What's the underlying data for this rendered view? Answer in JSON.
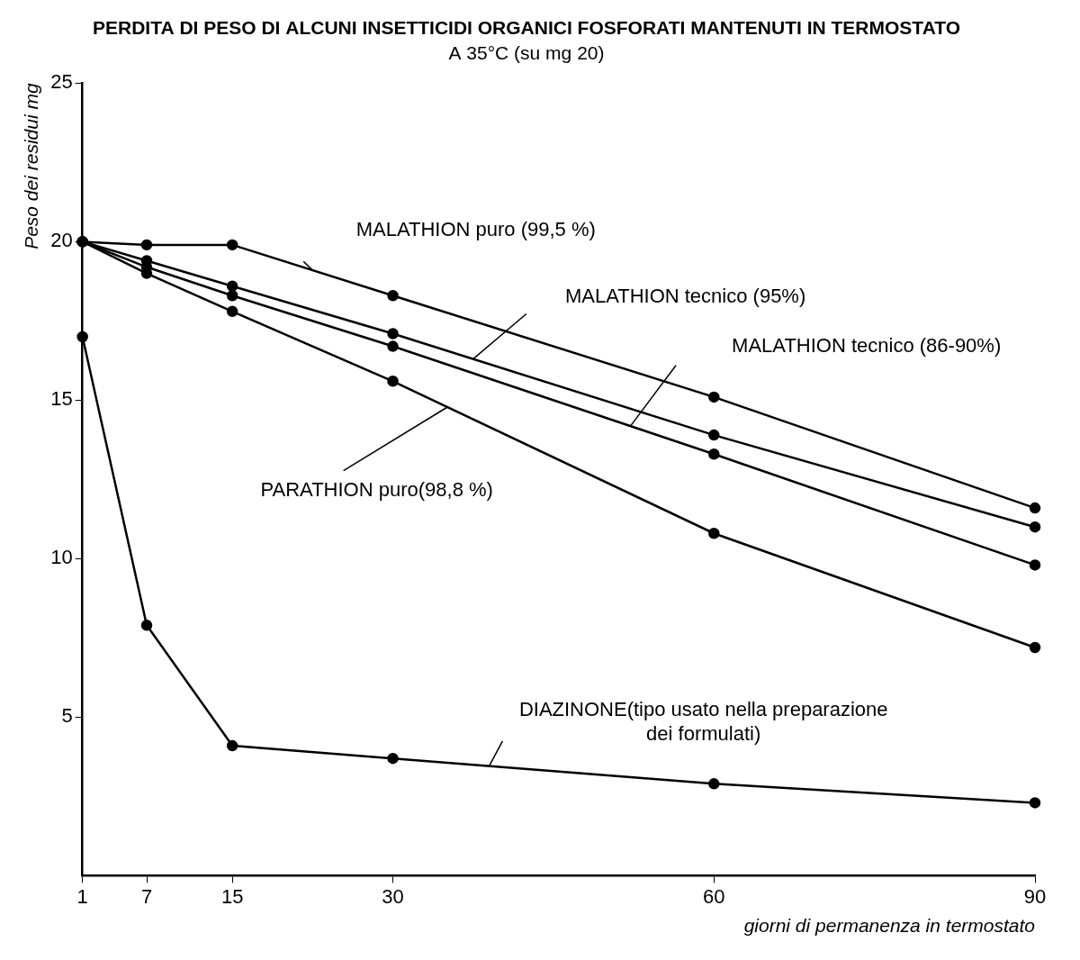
{
  "chart_data": {
    "type": "line",
    "title": "PERDITA DI PESO DI ALCUNI INSETTICIDI ORGANICI FOSFORATI MANTENUTI IN TERMOSTATO",
    "subtitle": "A 35°C (su mg 20)",
    "x_label": "giorni di permanenza in termostato",
    "y_label": "Peso dei residui mg",
    "x": [
      1,
      7,
      15,
      30,
      60,
      90
    ],
    "series": [
      {
        "name": "MALATHION puro (99,5 %)",
        "color": "#000000",
        "values": [
          20,
          19.9,
          19.9,
          18.3,
          15.1,
          11.6
        ]
      },
      {
        "name": "MALATHION tecnico (95%)",
        "color": "#000000",
        "values": [
          20,
          19.4,
          18.6,
          17.1,
          13.9,
          11.0
        ]
      },
      {
        "name": "MALATHION tecnico (86-90%)",
        "color": "#000000",
        "values": [
          20,
          19.2,
          18.3,
          16.7,
          13.3,
          9.8
        ]
      },
      {
        "name": "PARATHION puro(98,8 %)",
        "color": "#000000",
        "values": [
          20,
          19.0,
          17.8,
          15.6,
          10.8,
          7.2
        ]
      },
      {
        "name": "DIAZINONE(tipo usato nella preparazione dei formulati)",
        "color": "#000000",
        "values": [
          17.0,
          7.9,
          4.1,
          3.7,
          2.9,
          2.3
        ]
      }
    ],
    "xlim": [
      1,
      90
    ],
    "xticks": [
      1,
      7,
      15,
      30,
      60,
      90
    ],
    "ylim": [
      0,
      25
    ],
    "yticks": [
      5,
      10,
      15,
      20,
      25
    ],
    "grid": false,
    "marker": "circle",
    "line_style": "solid"
  }
}
